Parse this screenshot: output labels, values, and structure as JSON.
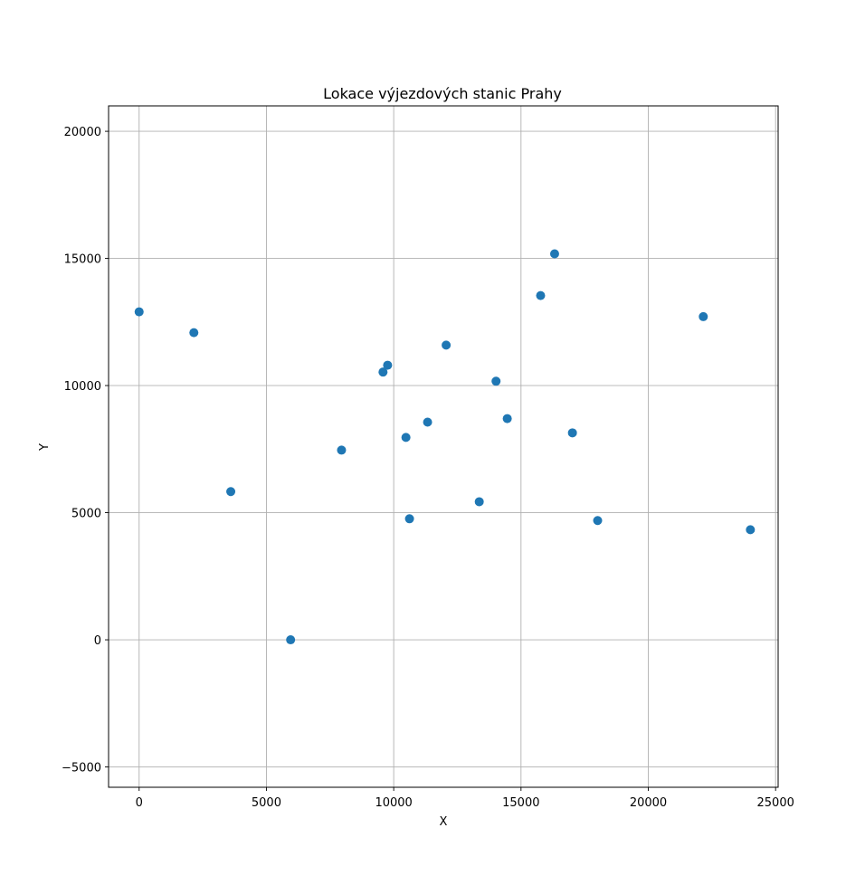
{
  "chart_data": {
    "type": "scatter",
    "title": "Lokace výjezdových stanic Prahy",
    "xlabel": "X",
    "ylabel": "Y",
    "xlim": [
      -1200,
      25100
    ],
    "ylim": [
      -5800,
      21000
    ],
    "xticks": [
      0,
      5000,
      10000,
      15000,
      20000,
      25000
    ],
    "xtick_labels": [
      "0",
      "5000",
      "10000",
      "15000",
      "20000",
      "25000"
    ],
    "yticks": [
      -5000,
      0,
      5000,
      10000,
      15000,
      20000
    ],
    "ytick_labels": [
      "−5000",
      "0",
      "5000",
      "10000",
      "15000",
      "20000"
    ],
    "grid": true,
    "marker_color": "#1f77b4",
    "points": [
      {
        "x": 0,
        "y": 12900
      },
      {
        "x": 2150,
        "y": 12080
      },
      {
        "x": 3600,
        "y": 5830
      },
      {
        "x": 5950,
        "y": 0
      },
      {
        "x": 7950,
        "y": 7460
      },
      {
        "x": 9580,
        "y": 10530
      },
      {
        "x": 9760,
        "y": 10800
      },
      {
        "x": 10480,
        "y": 7960
      },
      {
        "x": 10620,
        "y": 4760
      },
      {
        "x": 11330,
        "y": 8560
      },
      {
        "x": 12060,
        "y": 11590
      },
      {
        "x": 13360,
        "y": 5430
      },
      {
        "x": 14020,
        "y": 10170
      },
      {
        "x": 14460,
        "y": 8700
      },
      {
        "x": 15770,
        "y": 13540
      },
      {
        "x": 16320,
        "y": 15180
      },
      {
        "x": 17020,
        "y": 8140
      },
      {
        "x": 18010,
        "y": 4690
      },
      {
        "x": 22160,
        "y": 12710
      },
      {
        "x": 24010,
        "y": 4330
      }
    ]
  }
}
